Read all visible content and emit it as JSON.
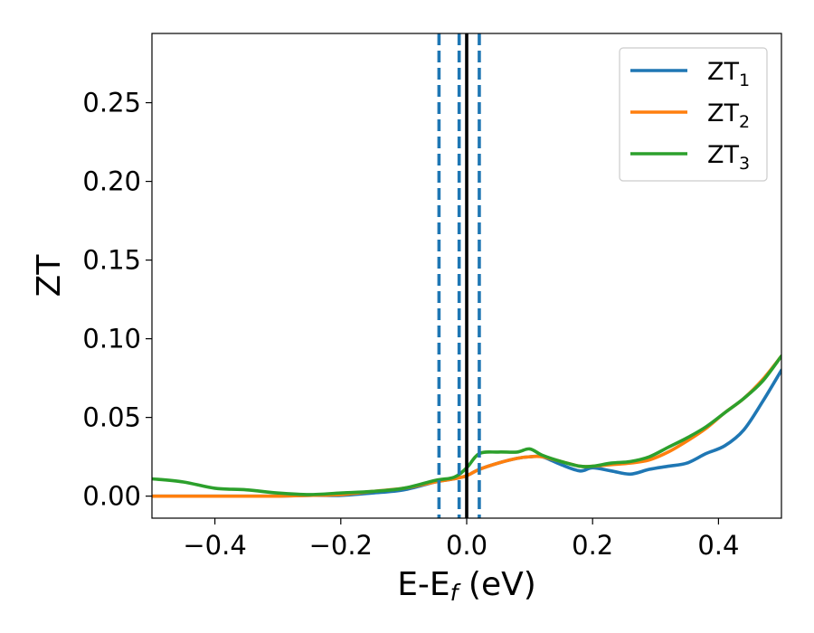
{
  "chart_data": {
    "type": "line",
    "title": "",
    "xlabel": "E-E",
    "xlabel_subscript": "f",
    "xlabel_suffix": " (eV)",
    "ylabel": "ZT",
    "xlim": [
      -0.5,
      0.5
    ],
    "ylim": [
      -0.014,
      0.294
    ],
    "xticks": [
      -0.4,
      -0.2,
      0.0,
      0.2,
      0.4
    ],
    "xtick_labels": [
      "−0.4",
      "−0.2",
      "0.0",
      "0.2",
      "0.4"
    ],
    "yticks": [
      0.0,
      0.05,
      0.1,
      0.15,
      0.2,
      0.25
    ],
    "ytick_labels": [
      "0.00",
      "0.05",
      "0.10",
      "0.15",
      "0.20",
      "0.25"
    ],
    "grid": false,
    "legend_position": "top-right",
    "legend": [
      {
        "label": "ZT",
        "sub": "1",
        "color": "#1f77b4"
      },
      {
        "label": "ZT",
        "sub": "2",
        "color": "#ff7f0e"
      },
      {
        "label": "ZT",
        "sub": "3",
        "color": "#2ca02c"
      }
    ],
    "vlines": [
      {
        "x": -0.044,
        "style": "dashed",
        "color": "#1f77b4"
      },
      {
        "x": -0.012,
        "style": "dashed",
        "color": "#1f77b4"
      },
      {
        "x": 0.0,
        "style": "solid",
        "color": "#000000"
      },
      {
        "x": 0.02,
        "style": "dashed",
        "color": "#1f77b4"
      }
    ],
    "x": [
      -0.5,
      -0.45,
      -0.4,
      -0.35,
      -0.3,
      -0.25,
      -0.2,
      -0.15,
      -0.1,
      -0.05,
      -0.02,
      0.0,
      0.02,
      0.05,
      0.08,
      0.1,
      0.12,
      0.15,
      0.18,
      0.2,
      0.23,
      0.26,
      0.29,
      0.32,
      0.35,
      0.38,
      0.41,
      0.44,
      0.47,
      0.5
    ],
    "series": [
      {
        "name": "ZT₁",
        "color": "#1f77b4",
        "values": [
          0.0,
          0.0,
          0.0,
          0.0,
          0.0,
          0.0005,
          0.0005,
          0.002,
          0.004,
          0.009,
          0.011,
          0.013,
          0.017,
          0.021,
          0.024,
          0.025,
          0.025,
          0.02,
          0.016,
          0.018,
          0.016,
          0.014,
          0.017,
          0.019,
          0.021,
          0.027,
          0.032,
          0.042,
          0.06,
          0.08
        ]
      },
      {
        "name": "ZT₂",
        "color": "#ff7f0e",
        "values": [
          0.0,
          0.0,
          0.0,
          0.0,
          0.0,
          0.0005,
          0.001,
          0.003,
          0.005,
          0.009,
          0.011,
          0.013,
          0.017,
          0.021,
          0.024,
          0.025,
          0.025,
          0.022,
          0.019,
          0.019,
          0.02,
          0.021,
          0.023,
          0.028,
          0.035,
          0.043,
          0.053,
          0.062,
          0.074,
          0.089
        ]
      },
      {
        "name": "ZT₃",
        "color": "#2ca02c",
        "values": [
          0.011,
          0.009,
          0.005,
          0.004,
          0.002,
          0.001,
          0.002,
          0.003,
          0.005,
          0.01,
          0.012,
          0.018,
          0.027,
          0.028,
          0.028,
          0.03,
          0.026,
          0.022,
          0.019,
          0.019,
          0.021,
          0.022,
          0.025,
          0.031,
          0.037,
          0.044,
          0.053,
          0.062,
          0.073,
          0.089
        ]
      }
    ]
  }
}
